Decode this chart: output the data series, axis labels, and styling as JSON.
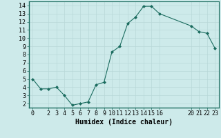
{
  "x": [
    0,
    1,
    2,
    3,
    4,
    5,
    6,
    7,
    8,
    9,
    10,
    11,
    12,
    13,
    14,
    15,
    16,
    20,
    21,
    22,
    23
  ],
  "y": [
    5.0,
    3.8,
    3.8,
    4.0,
    3.0,
    1.8,
    2.0,
    2.2,
    4.3,
    4.6,
    8.3,
    9.0,
    11.8,
    12.6,
    13.9,
    13.9,
    13.0,
    11.5,
    10.8,
    10.6,
    8.8
  ],
  "line_color": "#1a6b5e",
  "marker_color": "#1a6b5e",
  "bg_color": "#cdeaea",
  "grid_color": "#b8d8d8",
  "xlabel": "Humidex (Indice chaleur)",
  "xlim": [
    -0.5,
    23.5
  ],
  "ylim": [
    1.5,
    14.5
  ],
  "yticks": [
    2,
    3,
    4,
    5,
    6,
    7,
    8,
    9,
    10,
    11,
    12,
    13,
    14
  ],
  "xticks": [
    0,
    2,
    3,
    4,
    5,
    6,
    7,
    8,
    9,
    10,
    11,
    12,
    13,
    14,
    15,
    16,
    20,
    21,
    22,
    23
  ],
  "tick_fontsize": 6,
  "xlabel_fontsize": 7
}
